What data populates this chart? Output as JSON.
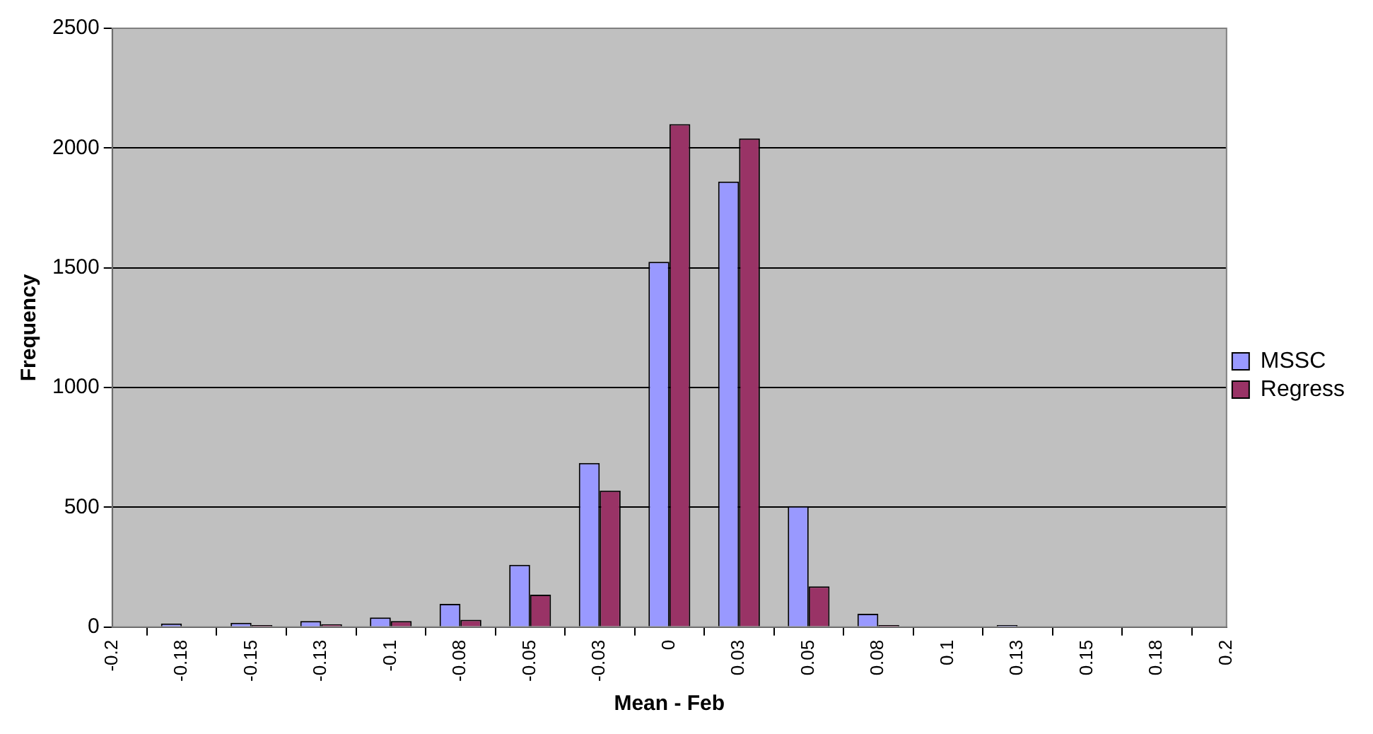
{
  "chart_data": {
    "type": "bar",
    "xlabel": "Mean - Feb",
    "ylabel": "Frequency",
    "categories": [
      "-0.2",
      "-0.18",
      "-0.15",
      "-0.13",
      "-0.1",
      "-0.08",
      "-0.05",
      "-0.03",
      "0",
      "0.03",
      "0.05",
      "0.08",
      "0.1",
      "0.13",
      "0.15",
      "0.18",
      "0.2"
    ],
    "series": [
      {
        "name": "MSSC",
        "color": "#9999ff",
        "values": [
          0,
          15,
          18,
          25,
          40,
          97,
          260,
          685,
          1525,
          1860,
          505,
          55,
          3,
          8,
          0,
          0,
          0
        ]
      },
      {
        "name": "Regress",
        "color": "#993366",
        "values": [
          0,
          0,
          8,
          12,
          25,
          30,
          135,
          570,
          2100,
          2040,
          170,
          8,
          3,
          0,
          0,
          0,
          0
        ]
      }
    ],
    "ylim": [
      0,
      2500
    ],
    "yticks": [
      0,
      500,
      1000,
      1500,
      2000,
      2500
    ],
    "grid": "y",
    "legend": "right"
  }
}
